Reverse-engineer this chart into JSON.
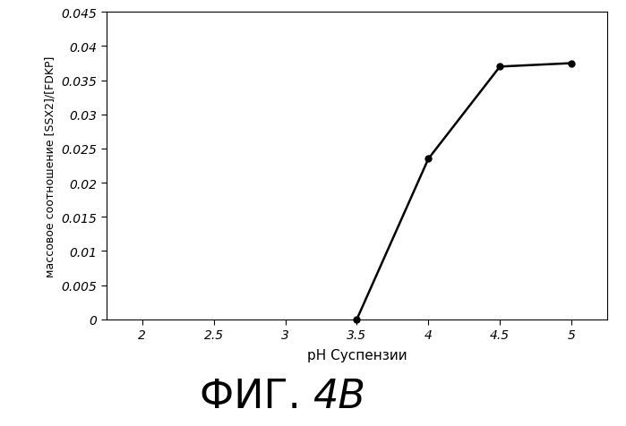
{
  "x": [
    3.5,
    4.0,
    4.5,
    5.0
  ],
  "y": [
    0.0,
    0.0235,
    0.037,
    0.0375
  ],
  "xlim": [
    1.75,
    5.25
  ],
  "ylim": [
    0,
    0.045
  ],
  "xticks": [
    2,
    2.5,
    3,
    3.5,
    4,
    4.5,
    5
  ],
  "yticks": [
    0,
    0.005,
    0.01,
    0.015,
    0.02,
    0.025,
    0.03,
    0.035,
    0.04,
    0.045
  ],
  "xlabel": "рН Суспензии",
  "ylabel": "массовое соотношение [SSX2]/[FDKP]",
  "caption_prefix": "ФИГ. ",
  "caption_suffix": "4В",
  "line_color": "#000000",
  "marker": "o",
  "markersize": 5,
  "linewidth": 1.8,
  "background_color": "#ffffff",
  "tick_labelsize": 10,
  "xlabel_fontsize": 11,
  "ylabel_fontsize": 9,
  "caption_fontsize": 32
}
